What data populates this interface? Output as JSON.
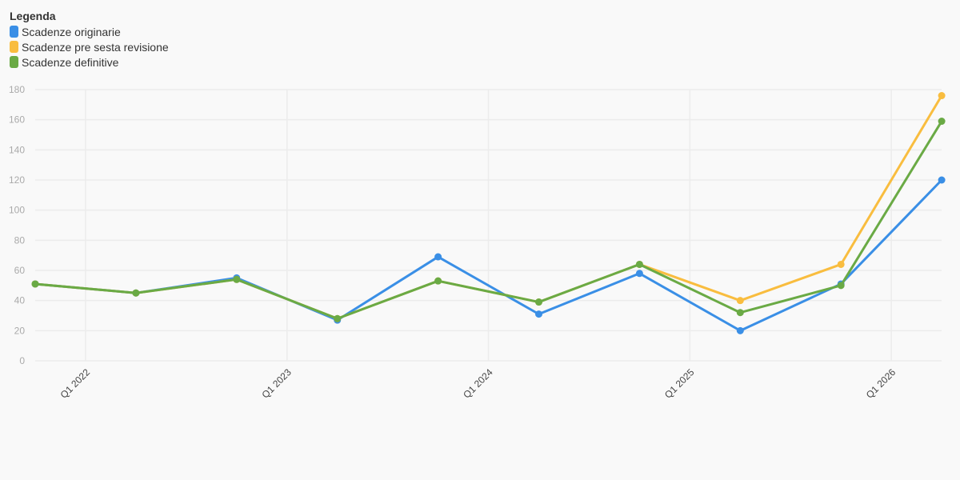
{
  "legend": {
    "title": "Legenda"
  },
  "chart_data": {
    "type": "line",
    "title": "",
    "xlabel": "",
    "ylabel": "",
    "ylim": [
      0,
      180
    ],
    "y_ticks": [
      0,
      20,
      40,
      60,
      80,
      100,
      120,
      140,
      160,
      180
    ],
    "x_tick_labels": [
      "Q1 2022",
      "Q1 2023",
      "Q1 2024",
      "Q1 2025",
      "Q1 2026"
    ],
    "x": [
      "Q4 2021",
      "Q2 2022",
      "Q4 2022",
      "Q2 2023",
      "Q4 2023",
      "Q2 2024",
      "Q4 2024",
      "Q2 2025",
      "Q4 2025",
      "Q2 2026"
    ],
    "grid": true,
    "legend_position": "top-left",
    "series": [
      {
        "name": "Scadenze originarie",
        "color": "#3a8fe6",
        "values": [
          51,
          45,
          55,
          27,
          69,
          31,
          58,
          20,
          51,
          120
        ]
      },
      {
        "name": "Scadenze pre sesta revisione",
        "color": "#f9bd3f",
        "values": [
          51,
          45,
          54,
          28,
          53,
          39,
          64,
          40,
          64,
          176
        ]
      },
      {
        "name": "Scadenze definitive",
        "color": "#6aaa45",
        "values": [
          51,
          45,
          54,
          28,
          53,
          39,
          64,
          32,
          50,
          159
        ]
      }
    ]
  }
}
